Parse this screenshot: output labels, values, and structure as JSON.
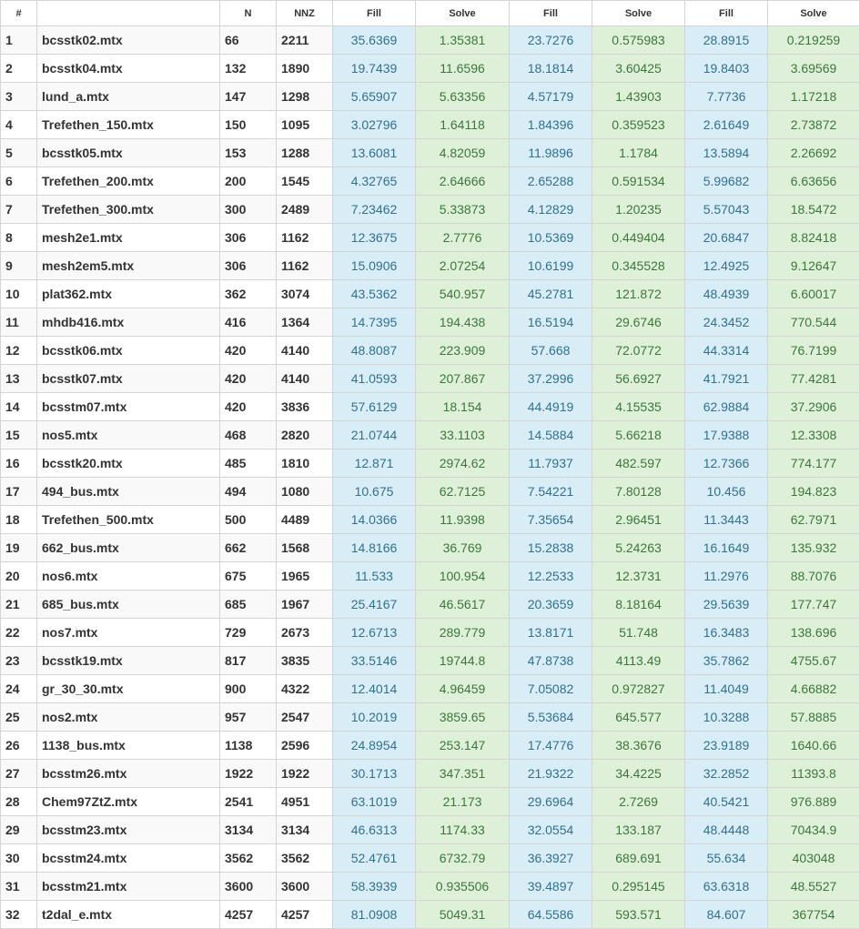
{
  "headers": [
    "#",
    "",
    "N",
    "NNZ",
    "Fill",
    "Solve",
    "Fill",
    "Solve",
    "Fill",
    "Solve"
  ],
  "rows": [
    [
      "1",
      "bcsstk02.mtx",
      "66",
      "2211",
      "35.6369",
      "1.35381",
      "23.7276",
      "0.575983",
      "28.8915",
      "0.219259"
    ],
    [
      "2",
      "bcsstk04.mtx",
      "132",
      "1890",
      "19.7439",
      "11.6596",
      "18.1814",
      "3.60425",
      "19.8403",
      "3.69569"
    ],
    [
      "3",
      "lund_a.mtx",
      "147",
      "1298",
      "5.65907",
      "5.63356",
      "4.57179",
      "1.43903",
      "7.7736",
      "1.17218"
    ],
    [
      "4",
      "Trefethen_150.mtx",
      "150",
      "1095",
      "3.02796",
      "1.64118",
      "1.84396",
      "0.359523",
      "2.61649",
      "2.73872"
    ],
    [
      "5",
      "bcsstk05.mtx",
      "153",
      "1288",
      "13.6081",
      "4.82059",
      "11.9896",
      "1.1784",
      "13.5894",
      "2.26692"
    ],
    [
      "6",
      "Trefethen_200.mtx",
      "200",
      "1545",
      "4.32765",
      "2.64666",
      "2.65288",
      "0.591534",
      "5.99682",
      "6.63656"
    ],
    [
      "7",
      "Trefethen_300.mtx",
      "300",
      "2489",
      "7.23462",
      "5.33873",
      "4.12829",
      "1.20235",
      "5.57043",
      "18.5472"
    ],
    [
      "8",
      "mesh2e1.mtx",
      "306",
      "1162",
      "12.3675",
      "2.7776",
      "10.5369",
      "0.449404",
      "20.6847",
      "8.82418"
    ],
    [
      "9",
      "mesh2em5.mtx",
      "306",
      "1162",
      "15.0906",
      "2.07254",
      "10.6199",
      "0.345528",
      "12.4925",
      "9.12647"
    ],
    [
      "10",
      "plat362.mtx",
      "362",
      "3074",
      "43.5362",
      "540.957",
      "45.2781",
      "121.872",
      "48.4939",
      "6.60017"
    ],
    [
      "11",
      "mhdb416.mtx",
      "416",
      "1364",
      "14.7395",
      "194.438",
      "16.5194",
      "29.6746",
      "24.3452",
      "770.544"
    ],
    [
      "12",
      "bcsstk06.mtx",
      "420",
      "4140",
      "48.8087",
      "223.909",
      "57.668",
      "72.0772",
      "44.3314",
      "76.7199"
    ],
    [
      "13",
      "bcsstk07.mtx",
      "420",
      "4140",
      "41.0593",
      "207.867",
      "37.2996",
      "56.6927",
      "41.7921",
      "77.4281"
    ],
    [
      "14",
      "bcsstm07.mtx",
      "420",
      "3836",
      "57.6129",
      "18.154",
      "44.4919",
      "4.15535",
      "62.9884",
      "37.2906"
    ],
    [
      "15",
      "nos5.mtx",
      "468",
      "2820",
      "21.0744",
      "33.1103",
      "14.5884",
      "5.66218",
      "17.9388",
      "12.3308"
    ],
    [
      "16",
      "bcsstk20.mtx",
      "485",
      "1810",
      "12.871",
      "2974.62",
      "11.7937",
      "482.597",
      "12.7366",
      "774.177"
    ],
    [
      "17",
      "494_bus.mtx",
      "494",
      "1080",
      "10.675",
      "62.7125",
      "7.54221",
      "7.80128",
      "10.456",
      "194.823"
    ],
    [
      "18",
      "Trefethen_500.mtx",
      "500",
      "4489",
      "14.0366",
      "11.9398",
      "7.35654",
      "2.96451",
      "11.3443",
      "62.7971"
    ],
    [
      "19",
      "662_bus.mtx",
      "662",
      "1568",
      "14.8166",
      "36.769",
      "15.2838",
      "5.24263",
      "16.1649",
      "135.932"
    ],
    [
      "20",
      "nos6.mtx",
      "675",
      "1965",
      "11.533",
      "100.954",
      "12.2533",
      "12.3731",
      "11.2976",
      "88.7076"
    ],
    [
      "21",
      "685_bus.mtx",
      "685",
      "1967",
      "25.4167",
      "46.5617",
      "20.3659",
      "8.18164",
      "29.5639",
      "177.747"
    ],
    [
      "22",
      "nos7.mtx",
      "729",
      "2673",
      "12.6713",
      "289.779",
      "13.8171",
      "51.748",
      "16.3483",
      "138.696"
    ],
    [
      "23",
      "bcsstk19.mtx",
      "817",
      "3835",
      "33.5146",
      "19744.8",
      "47.8738",
      "4113.49",
      "35.7862",
      "4755.67"
    ],
    [
      "24",
      "gr_30_30.mtx",
      "900",
      "4322",
      "12.4014",
      "4.96459",
      "7.05082",
      "0.972827",
      "11.4049",
      "4.66882"
    ],
    [
      "25",
      "nos2.mtx",
      "957",
      "2547",
      "10.2019",
      "3859.65",
      "5.53684",
      "645.577",
      "10.3288",
      "57.8885"
    ],
    [
      "26",
      "1138_bus.mtx",
      "1138",
      "2596",
      "24.8954",
      "253.147",
      "17.4776",
      "38.3676",
      "23.9189",
      "1640.66"
    ],
    [
      "27",
      "bcsstm26.mtx",
      "1922",
      "1922",
      "30.1713",
      "347.351",
      "21.9322",
      "34.4225",
      "32.2852",
      "11393.8"
    ],
    [
      "28",
      "Chem97ZtZ.mtx",
      "2541",
      "4951",
      "63.1019",
      "21.173",
      "29.6964",
      "2.7269",
      "40.5421",
      "976.889"
    ],
    [
      "29",
      "bcsstm23.mtx",
      "3134",
      "3134",
      "46.6313",
      "1174.33",
      "32.0554",
      "133.187",
      "48.4448",
      "70434.9"
    ],
    [
      "30",
      "bcsstm24.mtx",
      "3562",
      "3562",
      "52.4761",
      "6732.79",
      "36.3927",
      "689.691",
      "55.634",
      "403048"
    ],
    [
      "31",
      "bcsstm21.mtx",
      "3600",
      "3600",
      "58.3939",
      "0.935506",
      "39.4897",
      "0.295145",
      "63.6318",
      "48.5527"
    ],
    [
      "32",
      "t2dal_e.mtx",
      "4257",
      "4257",
      "81.0908",
      "5049.31",
      "64.5586",
      "593.571",
      "84.607",
      "367754"
    ]
  ],
  "colors": {
    "fill_bg": "#d9edf7",
    "fill_text": "#31708f",
    "solve_bg": "#dff0d8",
    "solve_text": "#3c763d",
    "border": "#d4d4d4",
    "stripe": "#f9f9f9"
  }
}
